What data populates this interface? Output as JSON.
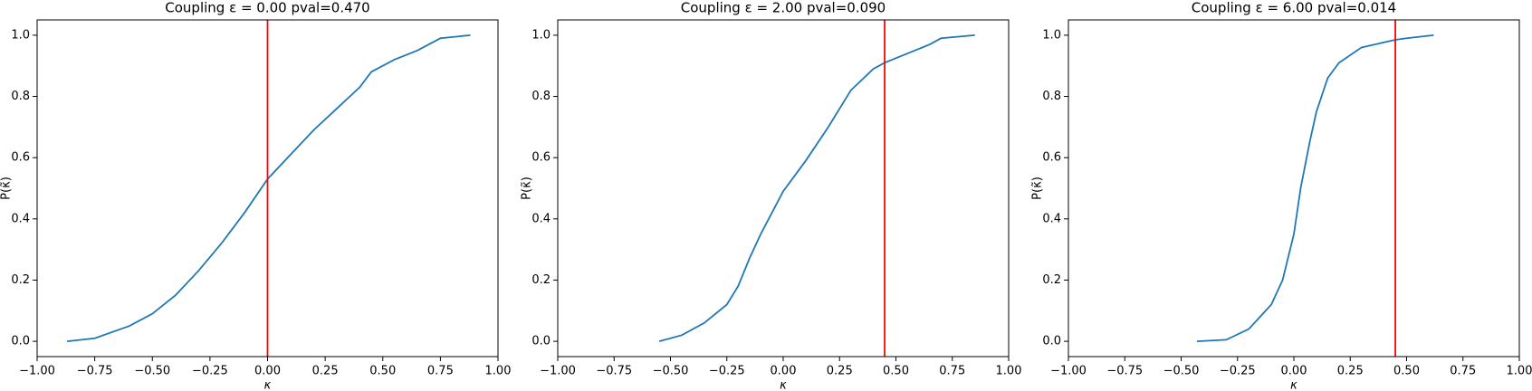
{
  "chart_data": [
    {
      "type": "line",
      "title": "Coupling ε = 0.00 pval=0.470",
      "xlabel": "κ",
      "ylabel": "P(κ̃)",
      "x": [
        -0.87,
        -0.75,
        -0.6,
        -0.5,
        -0.4,
        -0.3,
        -0.2,
        -0.1,
        0.0,
        0.1,
        0.2,
        0.3,
        0.4,
        0.45,
        0.55,
        0.65,
        0.75,
        0.88
      ],
      "values": [
        0.0,
        0.01,
        0.05,
        0.09,
        0.15,
        0.23,
        0.32,
        0.42,
        0.53,
        0.61,
        0.69,
        0.76,
        0.83,
        0.88,
        0.92,
        0.95,
        0.99,
        1.0
      ],
      "color": "#1f77b4",
      "vline": {
        "x": 0.0,
        "color": "#ff0000"
      },
      "xlim": [
        -1,
        1
      ],
      "ylim": [
        -0.05,
        1.05
      ],
      "xticks": [
        {
          "value": -1,
          "label": "−1.00"
        },
        {
          "value": -0.75,
          "label": "−0.75"
        },
        {
          "value": -0.5,
          "label": "−0.50"
        },
        {
          "value": -0.25,
          "label": "−0.25"
        },
        {
          "value": 0,
          "label": "0.00"
        },
        {
          "value": 0.25,
          "label": "0.25"
        },
        {
          "value": 0.5,
          "label": "0.50"
        },
        {
          "value": 0.75,
          "label": "0.75"
        },
        {
          "value": 1,
          "label": "1.00"
        }
      ],
      "yticks": [
        {
          "value": 0,
          "label": "0.0"
        },
        0.2,
        0.4,
        0.6,
        0.8,
        {
          "value": 1,
          "label": "1.0"
        }
      ]
    },
    {
      "type": "line",
      "title": "Coupling ε = 2.00 pval=0.090",
      "xlabel": "κ",
      "ylabel": "P(κ̃)",
      "x": [
        -0.55,
        -0.45,
        -0.35,
        -0.25,
        -0.2,
        -0.15,
        -0.1,
        -0.05,
        0.0,
        0.1,
        0.2,
        0.3,
        0.4,
        0.45,
        0.55,
        0.65,
        0.7,
        0.85
      ],
      "values": [
        0.0,
        0.02,
        0.06,
        0.12,
        0.18,
        0.27,
        0.35,
        0.42,
        0.49,
        0.59,
        0.7,
        0.82,
        0.89,
        0.91,
        0.94,
        0.97,
        0.99,
        1.0
      ],
      "color": "#1f77b4",
      "vline": {
        "x": 0.45,
        "color": "#ff0000"
      },
      "xlim": [
        -1,
        1
      ],
      "ylim": [
        -0.05,
        1.05
      ],
      "xticks": [
        {
          "value": -1,
          "label": "−1.00"
        },
        {
          "value": -0.75,
          "label": "−0.75"
        },
        {
          "value": -0.5,
          "label": "−0.50"
        },
        {
          "value": -0.25,
          "label": "−0.25"
        },
        {
          "value": 0,
          "label": "0.00"
        },
        {
          "value": 0.25,
          "label": "0.25"
        },
        {
          "value": 0.5,
          "label": "0.50"
        },
        {
          "value": 0.75,
          "label": "0.75"
        },
        {
          "value": 1,
          "label": "1.00"
        }
      ],
      "yticks": [
        {
          "value": 0,
          "label": "0.0"
        },
        0.2,
        0.4,
        0.6,
        0.8,
        {
          "value": 1,
          "label": "1.0"
        }
      ]
    },
    {
      "type": "line",
      "title": "Coupling ε = 6.00 pval=0.014",
      "xlabel": "κ",
      "ylabel": "P(κ̃)",
      "x": [
        -0.43,
        -0.3,
        -0.2,
        -0.1,
        -0.05,
        0.0,
        0.03,
        0.07,
        0.1,
        0.15,
        0.2,
        0.3,
        0.45,
        0.5,
        0.62
      ],
      "values": [
        0.0,
        0.005,
        0.04,
        0.12,
        0.2,
        0.35,
        0.5,
        0.65,
        0.75,
        0.86,
        0.91,
        0.96,
        0.985,
        0.99,
        1.0
      ],
      "color": "#1f77b4",
      "vline": {
        "x": 0.45,
        "color": "#ff0000"
      },
      "xlim": [
        -1,
        1
      ],
      "ylim": [
        -0.05,
        1.05
      ],
      "xticks": [
        {
          "value": -1,
          "label": "−1.00"
        },
        {
          "value": -0.75,
          "label": "−0.75"
        },
        {
          "value": -0.5,
          "label": "−0.50"
        },
        {
          "value": -0.25,
          "label": "−0.25"
        },
        {
          "value": 0,
          "label": "0.00"
        },
        {
          "value": 0.25,
          "label": "0.25"
        },
        {
          "value": 0.5,
          "label": "0.50"
        },
        {
          "value": 0.75,
          "label": "0.75"
        },
        {
          "value": 1,
          "label": "1.00"
        }
      ],
      "yticks": [
        {
          "value": 0,
          "label": "0.0"
        },
        0.2,
        0.4,
        0.6,
        0.8,
        {
          "value": 1,
          "label": "1.0"
        }
      ]
    }
  ]
}
